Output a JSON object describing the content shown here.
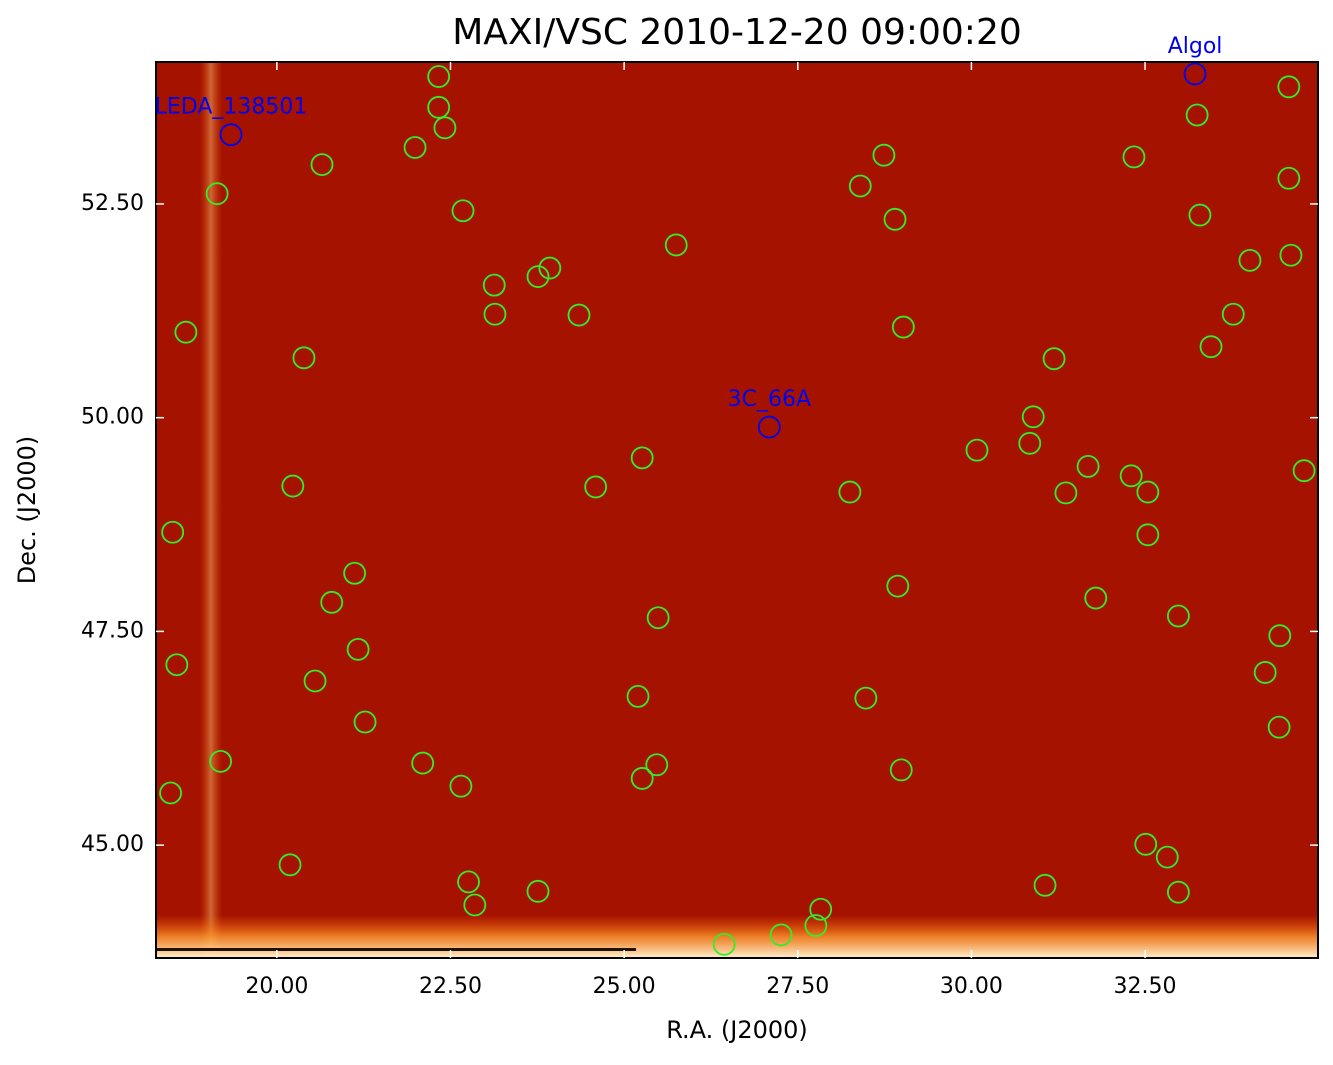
{
  "chart_data": {
    "type": "scatter",
    "title": "MAXI/VSC 2010-12-20 09:00:20",
    "x_label": "R.A. (J2000)",
    "y_label": "Dec. (J2000)",
    "xlim": [
      18.26,
      34.99
    ],
    "ylim": [
      43.68,
      54.16
    ],
    "xticks": [
      {
        "value": 20,
        "label": "20.00"
      },
      {
        "value": 22.5,
        "label": "22.50"
      },
      {
        "value": 25,
        "label": "25.00"
      },
      {
        "value": 27.5,
        "label": "27.50"
      },
      {
        "value": 30,
        "label": "30.00"
      },
      {
        "value": 32.5,
        "label": "32.50"
      }
    ],
    "yticks": [
      {
        "value": 45,
        "label": "45.00"
      },
      {
        "value": 47.5,
        "label": "47.50"
      },
      {
        "value": 50,
        "label": "50.00"
      },
      {
        "value": 52.5,
        "label": "52.50"
      }
    ],
    "background": "#a51300",
    "series": [
      {
        "color": "#33ee22",
        "x": [
          22.33,
          22.33,
          22.42,
          21.99,
          20.65,
          19.14,
          22.68,
          23.13,
          23.76,
          23.93,
          23.14,
          24.35,
          25.75,
          18.69,
          20.39,
          20.23,
          18.5,
          24.59,
          25.26,
          21.12,
          20.79,
          21.17,
          18.56,
          20.55,
          21.27,
          19.19,
          18.47,
          22.1,
          22.65,
          25.49,
          25.2,
          25.26,
          25.47,
          20.19,
          22.76,
          22.85,
          23.76,
          26.44,
          27.26,
          27.76,
          27.83,
          28.74,
          28.4,
          28.9,
          29.02,
          28.25,
          28.94,
          28.48,
          28.99,
          30.08,
          30.89,
          30.84,
          31.19,
          31.36,
          31.68,
          31.79,
          32.3,
          32.54,
          32.54,
          32.34,
          33.25,
          33.29,
          33.45,
          33.77,
          34.01,
          34.57,
          34.57,
          34.6,
          34.79,
          32.98,
          34.44,
          34.23,
          34.43,
          32.51,
          32.82,
          32.98,
          31.06
        ],
        "y": [
          53.99,
          53.63,
          53.39,
          53.16,
          52.96,
          52.62,
          52.42,
          51.55,
          51.65,
          51.75,
          51.21,
          51.2,
          52.02,
          51.0,
          50.7,
          49.2,
          48.66,
          49.19,
          49.53,
          48.18,
          47.84,
          47.29,
          47.11,
          46.92,
          46.44,
          45.98,
          45.61,
          45.96,
          45.69,
          47.66,
          46.74,
          45.78,
          45.94,
          44.77,
          44.57,
          44.3,
          44.46,
          43.84,
          43.95,
          44.06,
          44.25,
          53.07,
          52.71,
          52.32,
          51.06,
          49.13,
          48.03,
          46.72,
          45.88,
          49.62,
          50.01,
          49.7,
          50.69,
          49.12,
          49.43,
          47.89,
          49.32,
          49.13,
          48.63,
          53.05,
          53.54,
          52.37,
          50.83,
          51.21,
          51.84,
          53.87,
          52.8,
          51.9,
          49.38,
          47.68,
          47.45,
          47.02,
          46.38,
          45.01,
          44.86,
          44.45,
          44.53
        ]
      }
    ],
    "sources": {
      "color": "#0000ee",
      "names": [
        "LEDA_138501",
        "3C_66A",
        "Algol"
      ],
      "x": [
        19.34,
        27.09,
        33.22
      ],
      "y": [
        53.31,
        49.89,
        54.02
      ]
    }
  }
}
